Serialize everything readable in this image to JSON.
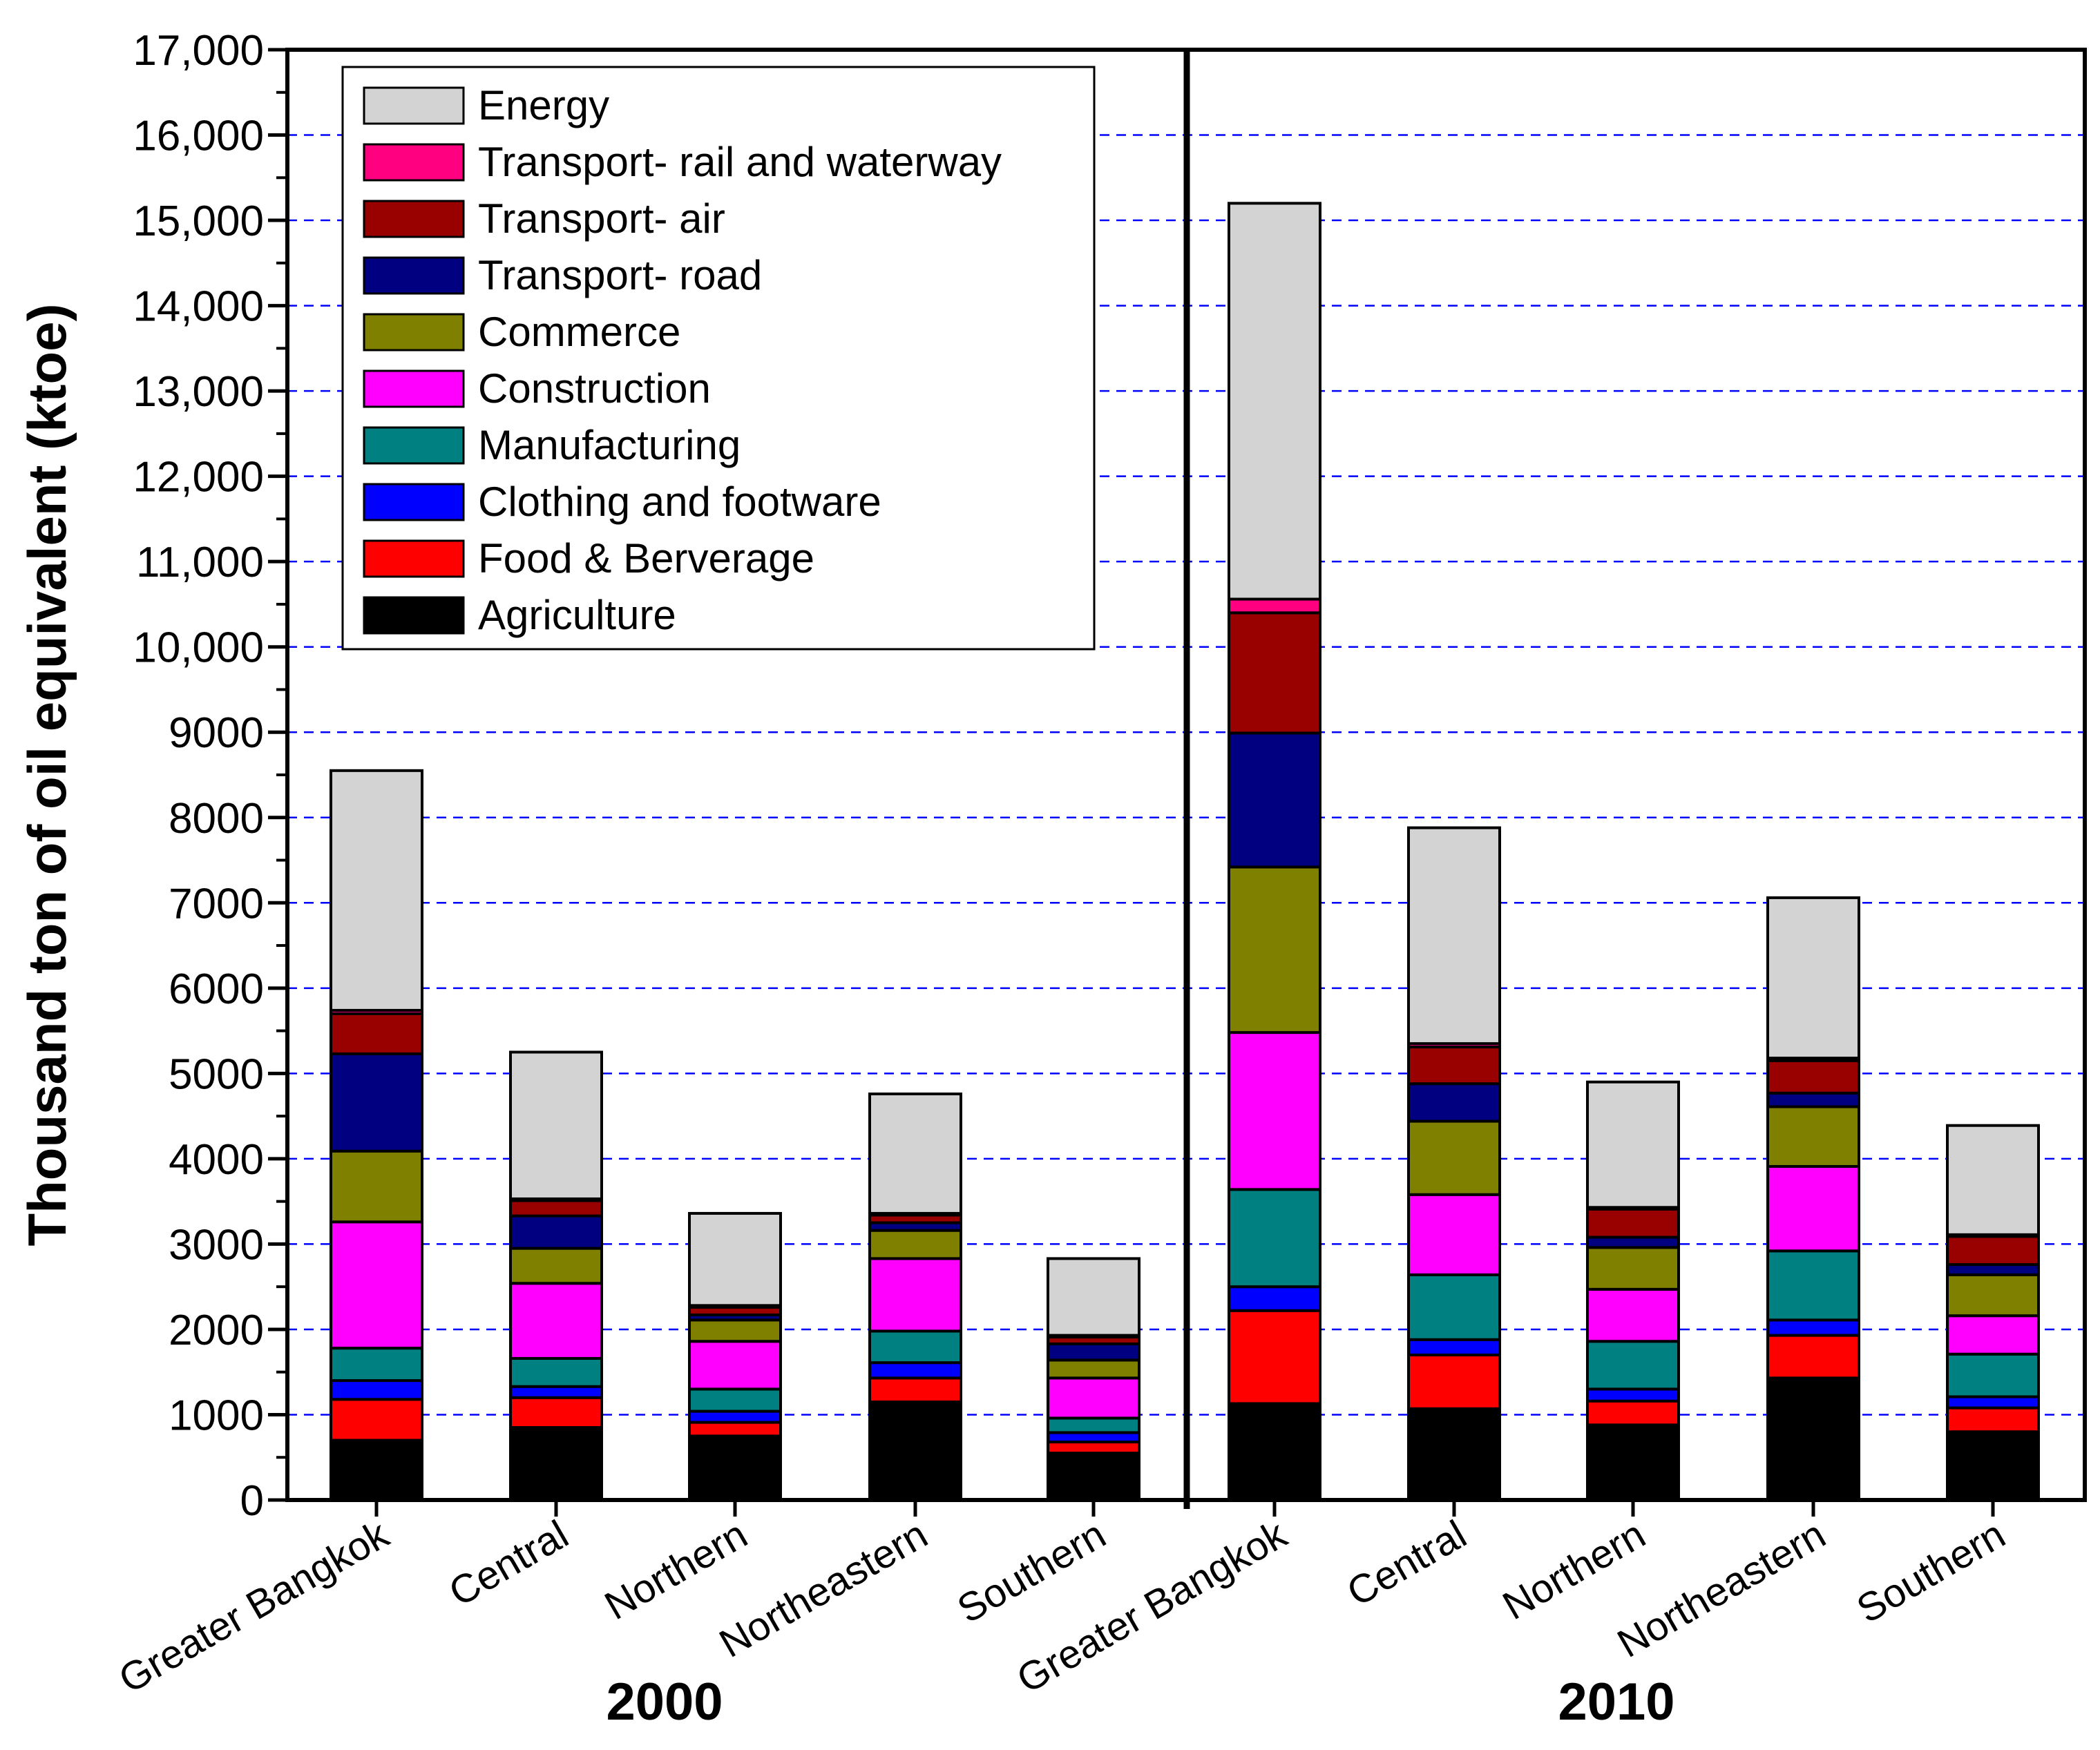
{
  "chart_data": {
    "type": "bar",
    "stacked": true,
    "ylabel": "Thousand ton of oil equivalent (ktoe)",
    "ylim": [
      0,
      17000
    ],
    "yticks": [
      {
        "value": 0,
        "label": "0"
      },
      {
        "value": 1000,
        "label": "1000"
      },
      {
        "value": 2000,
        "label": "2000"
      },
      {
        "value": 3000,
        "label": "3000"
      },
      {
        "value": 4000,
        "label": "4000"
      },
      {
        "value": 5000,
        "label": "5000"
      },
      {
        "value": 6000,
        "label": "6000"
      },
      {
        "value": 7000,
        "label": "7000"
      },
      {
        "value": 8000,
        "label": "8000"
      },
      {
        "value": 9000,
        "label": "9000"
      },
      {
        "value": 10000,
        "label": "10,000"
      },
      {
        "value": 11000,
        "label": "11,000"
      },
      {
        "value": 12000,
        "label": "12,000"
      },
      {
        "value": 13000,
        "label": "13,000"
      },
      {
        "value": 14000,
        "label": "14,000"
      },
      {
        "value": 15000,
        "label": "15,000"
      },
      {
        "value": 16000,
        "label": "16,000"
      },
      {
        "value": 17000,
        "label": "17,000"
      }
    ],
    "grid": "horizontal dashed",
    "legend_position": "top-left",
    "groups": [
      {
        "label": "2000",
        "categories": [
          "Greater Bangkok",
          "Central",
          "Northern",
          "Northeastern",
          "Southern"
        ]
      },
      {
        "label": "2010",
        "categories": [
          "Greater Bangkok",
          "Central",
          "Northern",
          "Northeastern",
          "Southern"
        ]
      }
    ],
    "categories": [
      "Greater Bangkok",
      "Central",
      "Northern",
      "Northeastern",
      "Southern",
      "Greater Bangkok",
      "Central",
      "Northern",
      "Northeastern",
      "Southern"
    ],
    "series": [
      {
        "name": "Agriculture",
        "color": "#000000",
        "values": [
          700,
          850,
          750,
          1150,
          550,
          1130,
          1070,
          880,
          1430,
          800
        ]
      },
      {
        "name": "Food & Berverage",
        "color": "#ff0000",
        "values": [
          480,
          350,
          160,
          280,
          130,
          1090,
          630,
          280,
          500,
          280
        ]
      },
      {
        "name": "Clothing and footware",
        "color": "#0000ff",
        "values": [
          220,
          130,
          130,
          180,
          110,
          280,
          180,
          140,
          180,
          130
        ]
      },
      {
        "name": "Manufacturing",
        "color": "#008080",
        "values": [
          380,
          330,
          260,
          370,
          170,
          1140,
          760,
          560,
          810,
          500
        ]
      },
      {
        "name": "Construction",
        "color": "#ff00ff",
        "values": [
          1480,
          880,
          560,
          850,
          470,
          1840,
          940,
          610,
          990,
          450
        ]
      },
      {
        "name": "Commerce",
        "color": "#808000",
        "values": [
          830,
          410,
          250,
          330,
          210,
          1940,
          860,
          490,
          700,
          480
        ]
      },
      {
        "name": "Transport- road",
        "color": "#000080",
        "values": [
          1140,
          380,
          60,
          90,
          190,
          1570,
          440,
          120,
          160,
          120
        ]
      },
      {
        "name": "Transport- air",
        "color": "#990000",
        "values": [
          470,
          180,
          90,
          90,
          80,
          1410,
          430,
          330,
          380,
          330
        ]
      },
      {
        "name": "Transport- rail and waterway",
        "color": "#ff0080",
        "values": [
          40,
          20,
          20,
          20,
          20,
          160,
          40,
          20,
          30,
          20
        ]
      },
      {
        "name": "Energy",
        "color": "#d3d3d3",
        "values": [
          2810,
          1720,
          1080,
          1400,
          900,
          4640,
          2530,
          1470,
          1880,
          1280
        ]
      }
    ]
  }
}
